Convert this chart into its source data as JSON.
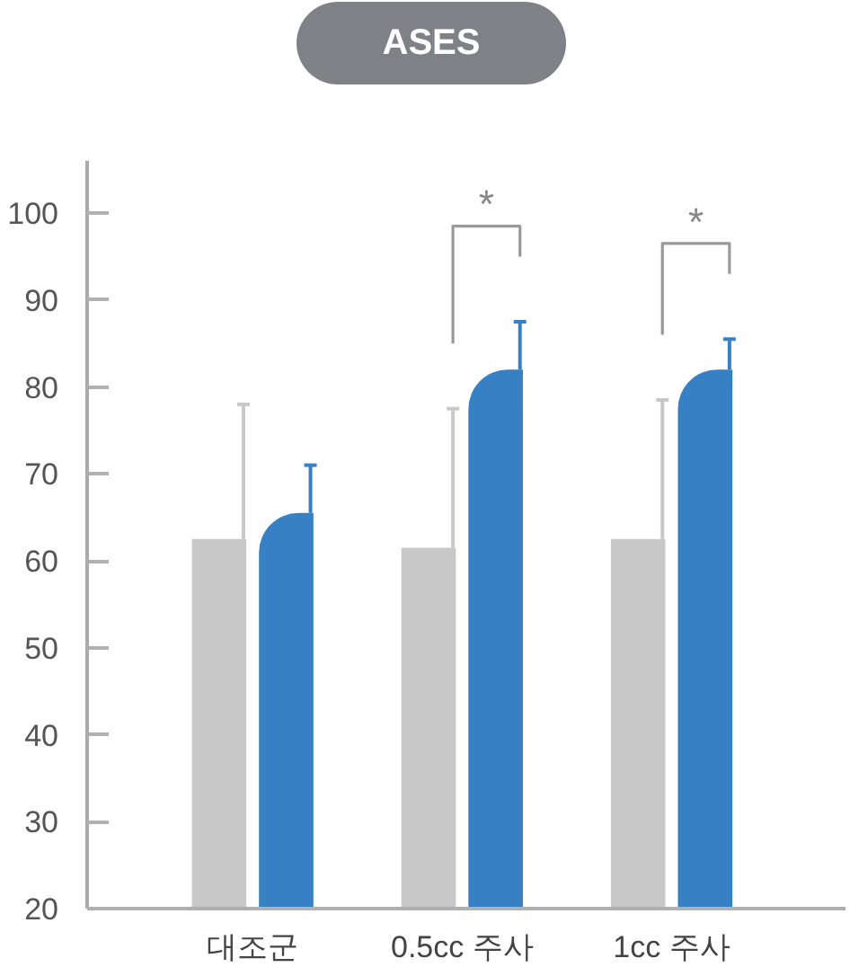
{
  "chart_data": {
    "type": "bar",
    "title": "ASES",
    "categories": [
      "대조군",
      "0.5cc 주사",
      "1cc 주사"
    ],
    "series": [
      {
        "color": "#c8c8c8",
        "values": [
          62.5,
          61.5,
          62.5
        ],
        "errors": [
          [
            62.5,
            78
          ],
          [
            61.5,
            77.5
          ],
          [
            62.5,
            78.5
          ]
        ]
      },
      {
        "color": "#3880c4",
        "values": [
          65.5,
          82,
          82
        ],
        "errors": [
          [
            65.5,
            71
          ],
          [
            82,
            87.5
          ],
          [
            82,
            85.5
          ]
        ]
      }
    ],
    "ylim": [
      20,
      106
    ],
    "yticks": [
      20,
      30,
      40,
      50,
      60,
      70,
      80,
      90,
      100
    ],
    "grid": false,
    "annotations": [
      "*",
      "*"
    ]
  }
}
